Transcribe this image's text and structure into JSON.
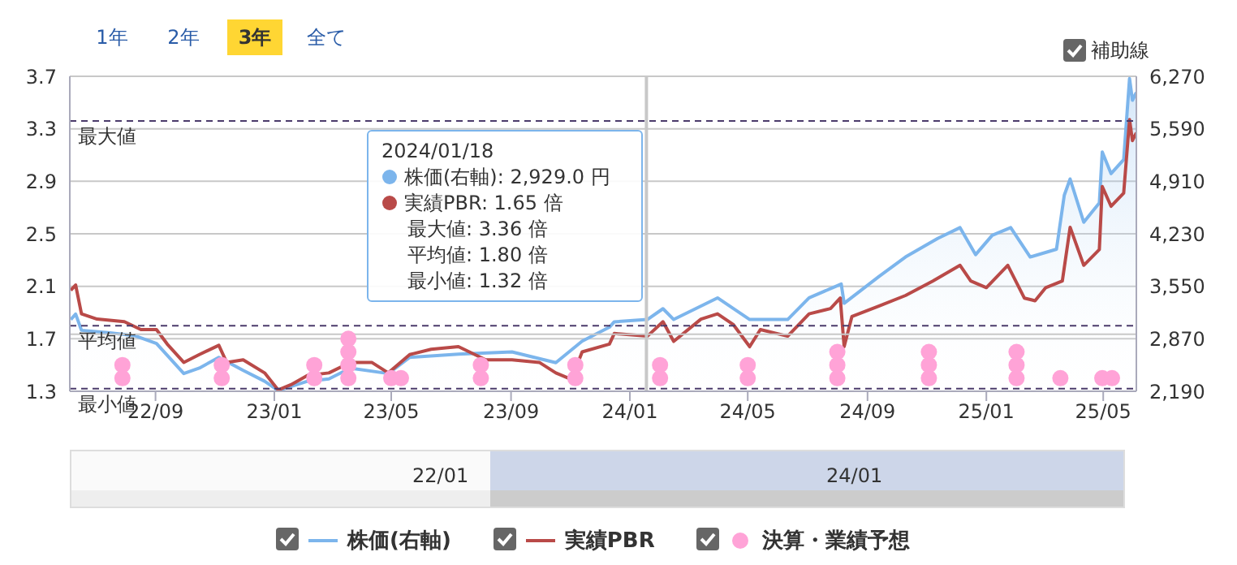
{
  "chart_data": {
    "type": "line",
    "xlim": [
      "2022-06-05",
      "2025-06-04"
    ],
    "xticks": [
      {
        "value": "2022-09-01",
        "label": "22/09"
      },
      {
        "value": "2023-01-01",
        "label": "23/01"
      },
      {
        "value": "2023-05-01",
        "label": "23/05"
      },
      {
        "value": "2023-09-01",
        "label": "23/09"
      },
      {
        "value": "2024-01-01",
        "label": "24/01"
      },
      {
        "value": "2024-05-01",
        "label": "24/05"
      },
      {
        "value": "2024-09-01",
        "label": "24/09"
      },
      {
        "value": "2025-01-01",
        "label": "25/01"
      },
      {
        "value": "2025-05-01",
        "label": "25/05"
      }
    ],
    "ylim": [
      1.3,
      3.7
    ],
    "yticks": [
      1.3,
      1.7,
      2.1,
      2.5,
      2.9,
      3.3,
      3.7
    ],
    "y2lim": [
      2190,
      6270
    ],
    "y2ticks": [
      {
        "value": 2190,
        "label": "2,190"
      },
      {
        "value": 2870,
        "label": "2,870"
      },
      {
        "value": 3550,
        "label": "3,550"
      },
      {
        "value": 4230,
        "label": "4,230"
      },
      {
        "value": 4910,
        "label": "4,910"
      },
      {
        "value": 5590,
        "label": "5,590"
      },
      {
        "value": 6270,
        "label": "6,270"
      }
    ],
    "grid": "y",
    "legend": "bottom",
    "marker": "none",
    "line_style": "solid",
    "series": [
      {
        "name": "株価(右軸)",
        "type": "area",
        "axis": "y2",
        "color": "#7cb5ec",
        "x": [
          "2022-06-06",
          "2022-06-11",
          "2022-06-17",
          "2022-07-14",
          "2022-08-11",
          "2022-09-02",
          "2022-09-30",
          "2022-10-16",
          "2022-11-05",
          "2022-11-30",
          "2022-12-22",
          "2023-01-05",
          "2023-02-04",
          "2023-02-26",
          "2023-03-20",
          "2023-04-28",
          "2023-05-20",
          "2023-07-09",
          "2023-09-02",
          "2023-10-17",
          "2023-11-13",
          "2023-12-11",
          "2023-12-16",
          "2024-01-19",
          "2024-02-04",
          "2024-02-15",
          "2024-03-31",
          "2024-05-03",
          "2024-06-11",
          "2024-07-03",
          "2024-08-05",
          "2024-08-08",
          "2024-09-13",
          "2024-10-10",
          "2024-11-12",
          "2024-12-05",
          "2024-12-21",
          "2025-01-07",
          "2025-01-26",
          "2025-02-15",
          "2025-03-14",
          "2025-03-22",
          "2025-03-28",
          "2025-04-11",
          "2025-04-27",
          "2025-04-30",
          "2025-05-09",
          "2025-05-22",
          "2025-05-28",
          "2025-05-31",
          "2025-06-04"
        ],
        "values": [
          3120,
          3190,
          2980,
          2950,
          2910,
          2810,
          2420,
          2490,
          2630,
          2460,
          2320,
          2200,
          2320,
          2350,
          2490,
          2420,
          2630,
          2670,
          2700,
          2560,
          2840,
          3020,
          3090,
          3120,
          3260,
          3120,
          3400,
          3120,
          3120,
          3400,
          3580,
          3330,
          3680,
          3930,
          4170,
          4310,
          3960,
          4210,
          4310,
          3930,
          4030,
          4730,
          4940,
          4380,
          4630,
          5290,
          5010,
          5190,
          6240,
          5960,
          6060
        ]
      },
      {
        "name": "実績PBR",
        "color": "#b94a48",
        "x": [
          "2022-06-06",
          "2022-06-11",
          "2022-06-17",
          "2022-07-03",
          "2022-07-31",
          "2022-08-17",
          "2022-09-02",
          "2022-09-13",
          "2022-09-30",
          "2022-10-16",
          "2022-11-05",
          "2022-11-13",
          "2022-11-30",
          "2022-12-22",
          "2023-01-05",
          "2023-01-18",
          "2023-02-04",
          "2023-02-26",
          "2023-03-20",
          "2023-04-11",
          "2023-04-28",
          "2023-05-20",
          "2023-06-11",
          "2023-07-09",
          "2023-08-06",
          "2023-09-02",
          "2023-09-30",
          "2023-10-17",
          "2023-11-02",
          "2023-11-13",
          "2023-12-11",
          "2023-12-16",
          "2024-01-19",
          "2024-02-04",
          "2024-02-15",
          "2024-03-14",
          "2024-03-31",
          "2024-04-16",
          "2024-05-03",
          "2024-05-14",
          "2024-06-11",
          "2024-07-03",
          "2024-07-25",
          "2024-08-04",
          "2024-08-08",
          "2024-08-16",
          "2024-09-13",
          "2024-10-10",
          "2024-11-07",
          "2024-12-05",
          "2024-12-16",
          "2025-01-01",
          "2025-01-23",
          "2025-02-09",
          "2025-02-20",
          "2025-03-03",
          "2025-03-20",
          "2025-03-28",
          "2025-04-11",
          "2025-04-27",
          "2025-04-30",
          "2025-05-09",
          "2025-05-22",
          "2025-05-28",
          "2025-05-31",
          "2025-06-04"
        ],
        "values": [
          2.07,
          2.11,
          1.89,
          1.85,
          1.83,
          1.77,
          1.77,
          1.66,
          1.52,
          1.58,
          1.65,
          1.52,
          1.54,
          1.44,
          1.31,
          1.35,
          1.42,
          1.44,
          1.52,
          1.52,
          1.44,
          1.58,
          1.62,
          1.64,
          1.54,
          1.54,
          1.52,
          1.44,
          1.39,
          1.6,
          1.66,
          1.74,
          1.72,
          1.83,
          1.68,
          1.85,
          1.89,
          1.81,
          1.64,
          1.77,
          1.72,
          1.89,
          1.93,
          2.01,
          1.64,
          1.87,
          1.95,
          2.03,
          2.14,
          2.26,
          2.14,
          2.09,
          2.26,
          2.01,
          1.99,
          2.09,
          2.14,
          2.55,
          2.26,
          2.38,
          2.86,
          2.71,
          2.81,
          3.37,
          3.21,
          3.27
        ]
      },
      {
        "name": "決算・業績予想",
        "type": "scatter",
        "color": "#ffa3d7",
        "marker": "circle",
        "x": [
          "2022-07-29",
          "2022-07-29",
          "2022-11-08",
          "2022-11-08",
          "2023-02-11",
          "2023-02-11",
          "2023-03-18",
          "2023-03-18",
          "2023-03-18",
          "2023-03-18",
          "2023-05-01",
          "2023-05-11",
          "2023-08-01",
          "2023-08-01",
          "2023-11-06",
          "2023-11-06",
          "2024-02-01",
          "2024-02-01",
          "2024-05-01",
          "2024-05-01",
          "2024-08-01",
          "2024-08-01",
          "2024-08-01",
          "2024-11-03",
          "2024-11-03",
          "2024-11-03",
          "2025-02-01",
          "2025-02-01",
          "2025-02-01",
          "2025-03-18",
          "2025-04-30",
          "2025-05-10"
        ],
        "values": [
          1.4,
          1.5,
          1.4,
          1.5,
          1.4,
          1.5,
          1.4,
          1.5,
          1.6,
          1.7,
          1.4,
          1.4,
          1.4,
          1.5,
          1.4,
          1.5,
          1.4,
          1.5,
          1.4,
          1.5,
          1.4,
          1.5,
          1.6,
          1.4,
          1.5,
          1.6,
          1.4,
          1.5,
          1.6,
          1.4,
          1.4,
          1.4
        ]
      }
    ],
    "ref_lines": [
      {
        "axis": "y",
        "value": 3.36,
        "label": "最大値",
        "color": "#4b3b6b",
        "line_style": "dashed"
      },
      {
        "axis": "y",
        "value": 1.8,
        "label": "平均値",
        "color": "#4b3b6b",
        "line_style": "dashed"
      },
      {
        "axis": "y",
        "value": 1.32,
        "label": "最小値",
        "color": "#4b3b6b",
        "line_style": "dashed"
      },
      {
        "axis": "x",
        "value": "2024-01-18",
        "label": null,
        "color": "#c8c8c8",
        "line_style": "solid"
      },
      {
        "axis": "y2",
        "value": 2929,
        "label": null,
        "color": "#c8c8c8",
        "line_style": "solid"
      }
    ],
    "annotations": [
      "1年",
      "2年",
      "3年",
      "全て",
      "補助線",
      "2024/01/18",
      "株価(右軸): 2,929.0 円",
      "実績PBR: 1.65 倍",
      "最大値: 3.36 倍",
      "平均値: 1.80 倍",
      "最小値: 1.32 倍",
      "22/01",
      "24/01"
    ]
  }
}
